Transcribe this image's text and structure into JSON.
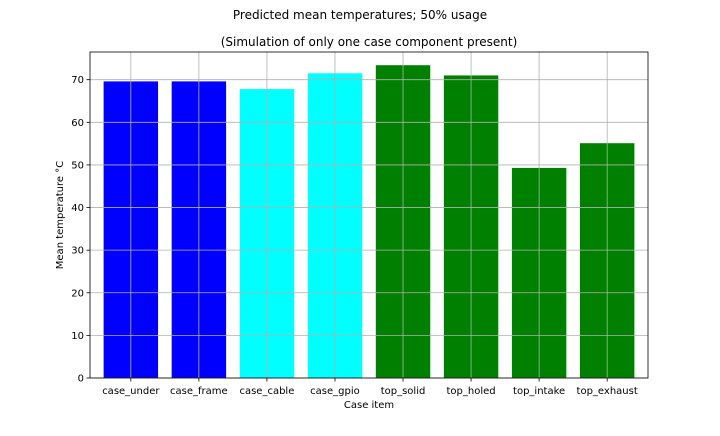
{
  "chart_data": {
    "type": "bar",
    "suptitle": "Predicted mean temperatures; 50% usage",
    "title": "(Simulation of only one case component present)",
    "xlabel": "Case item",
    "ylabel": "Mean temperature °C",
    "categories": [
      "case_under",
      "case_frame",
      "case_cable",
      "case_gpio",
      "top_solid",
      "top_holed",
      "top_intake",
      "top_exhaust"
    ],
    "values": [
      69.6,
      69.6,
      67.8,
      71.5,
      73.4,
      71.0,
      49.3,
      55.1
    ],
    "colors": [
      "#0000ff",
      "#0000ff",
      "#00ffff",
      "#00ffff",
      "#008000",
      "#008000",
      "#008000",
      "#008000"
    ],
    "ylim": [
      0,
      76.5
    ],
    "yticks": [
      "0",
      "10",
      "20",
      "30",
      "40",
      "50",
      "60",
      "70"
    ],
    "grid": true,
    "legend": "none"
  }
}
